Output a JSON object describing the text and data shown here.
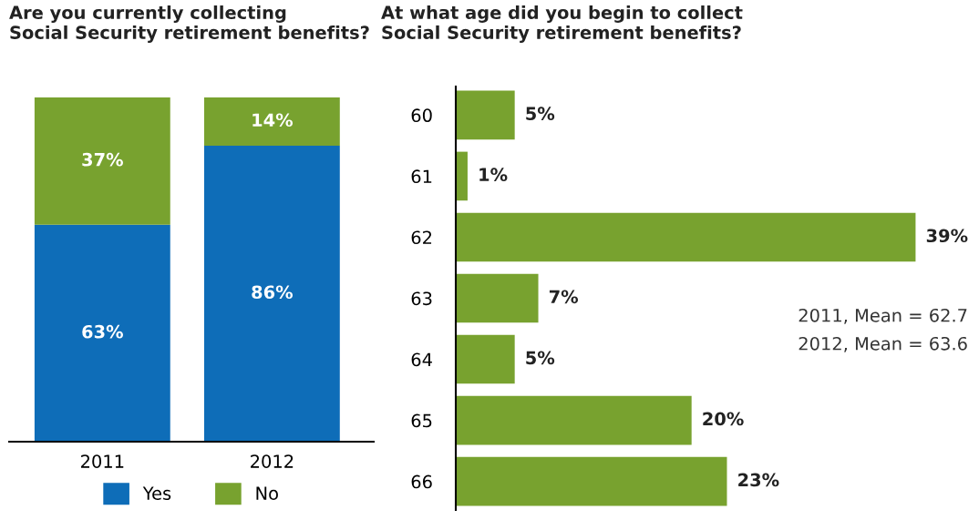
{
  "chart_data": [
    {
      "type": "bar",
      "title": "Are you currently collecting\nSocial Security retirement benefits?",
      "categories": [
        "2011",
        "2012"
      ],
      "stacked": true,
      "tick_labels": "x",
      "legend": "bottom",
      "series": [
        {
          "name": "Yes",
          "color": "#0e6db8",
          "values": [
            63,
            86
          ],
          "value_labels": [
            "63%",
            "86%"
          ]
        },
        {
          "name": "No",
          "color": "#78a22f",
          "values": [
            37,
            14
          ],
          "value_labels": [
            "37%",
            "14%"
          ]
        }
      ]
    },
    {
      "type": "bar",
      "orientation": "horizontal",
      "title": "At what age did you begin to collect\nSocial Security retirement benefits?",
      "categories": [
        "60",
        "61",
        "62",
        "63",
        "64",
        "65",
        "66"
      ],
      "tick_labels": "y",
      "series": [
        {
          "color": "#78a22f",
          "values": [
            5,
            1,
            39,
            7,
            5,
            20,
            23
          ],
          "value_labels": [
            "5%",
            "1%",
            "39%",
            "7%",
            "5%",
            "20%",
            "23%"
          ]
        }
      ],
      "annotations": [
        "2011, Mean = 62.7",
        "2012, Mean = 63.6"
      ]
    }
  ]
}
